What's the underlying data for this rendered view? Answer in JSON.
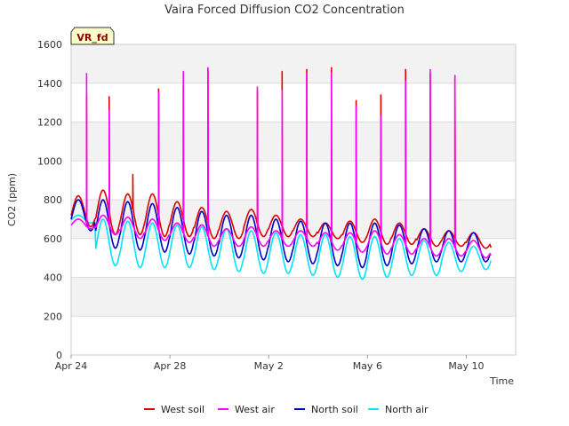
{
  "chart_data": {
    "type": "line",
    "title": "Vaira Forced Diffusion CO2 Concentration",
    "badge": "VR_fd",
    "xlabel": "Time",
    "ylabel": "CO2 (ppm)",
    "ylim": [
      0,
      1600
    ],
    "yticks": [
      0,
      200,
      400,
      600,
      800,
      1000,
      1200,
      1400,
      1600
    ],
    "x_start": "2024-04-24",
    "x_end": "2024-05-12",
    "xticks": [
      {
        "date": "2024-04-24",
        "label": "Apr 24"
      },
      {
        "date": "2024-04-28",
        "label": "Apr 28"
      },
      {
        "date": "2024-05-02",
        "label": "May 2"
      },
      {
        "date": "2024-05-06",
        "label": "May 6"
      },
      {
        "date": "2024-05-10",
        "label": "May 10"
      }
    ],
    "grid": true,
    "legend_placement": "bottom",
    "data_start": "2024-04-24",
    "data_end": "2024-05-11",
    "series": [
      {
        "name": "West soil",
        "color": "#e00000",
        "daily_max": [
          820,
          850,
          830,
          830,
          790,
          760,
          740,
          750,
          720,
          700,
          680,
          690,
          700,
          680,
          650,
          640,
          630,
          610
        ],
        "daily_min": [
          660,
          620,
          620,
          610,
          610,
          600,
          600,
          610,
          610,
          610,
          600,
          580,
          570,
          570,
          560,
          560,
          550,
          520
        ],
        "spikes": [
          {
            "date": "2024-04-24 15:00",
            "value": 1340
          },
          {
            "date": "2024-04-25 13:00",
            "value": 1330
          },
          {
            "date": "2024-04-26 12:00",
            "value": 930
          },
          {
            "date": "2024-04-27 13:00",
            "value": 1370
          },
          {
            "date": "2024-04-28 13:00",
            "value": 1380
          },
          {
            "date": "2024-04-29 13:00",
            "value": 1470
          },
          {
            "date": "2024-05-01 13:00",
            "value": 1360
          },
          {
            "date": "2024-05-02 13:00",
            "value": 1460
          },
          {
            "date": "2024-05-03 13:00",
            "value": 1470
          },
          {
            "date": "2024-05-04 13:00",
            "value": 1480
          },
          {
            "date": "2024-05-05 13:00",
            "value": 1310
          },
          {
            "date": "2024-05-06 13:00",
            "value": 1340
          },
          {
            "date": "2024-05-07 13:00",
            "value": 1470
          },
          {
            "date": "2024-05-08 13:00",
            "value": 1450
          },
          {
            "date": "2024-05-09 13:00",
            "value": 1420
          }
        ]
      },
      {
        "name": "West air",
        "color": "#ff00ff",
        "daily_max": [
          700,
          720,
          710,
          700,
          680,
          670,
          650,
          660,
          640,
          640,
          630,
          630,
          640,
          620,
          600,
          600,
          590,
          570
        ],
        "daily_min": [
          650,
          620,
          600,
          590,
          580,
          560,
          560,
          560,
          560,
          560,
          540,
          530,
          520,
          520,
          510,
          510,
          500,
          480
        ],
        "spikes": [
          {
            "date": "2024-04-24 15:00",
            "value": 1450
          },
          {
            "date": "2024-04-25 13:00",
            "value": 1260
          },
          {
            "date": "2024-04-27 13:00",
            "value": 1350
          },
          {
            "date": "2024-04-28 13:00",
            "value": 1460
          },
          {
            "date": "2024-04-29 13:00",
            "value": 1480
          },
          {
            "date": "2024-05-01 13:00",
            "value": 1380
          },
          {
            "date": "2024-05-02 13:00",
            "value": 1360
          },
          {
            "date": "2024-05-03 13:00",
            "value": 1450
          },
          {
            "date": "2024-05-04 13:00",
            "value": 1450
          },
          {
            "date": "2024-05-05 13:00",
            "value": 1280
          },
          {
            "date": "2024-05-06 13:00",
            "value": 1230
          },
          {
            "date": "2024-05-07 13:00",
            "value": 1410
          },
          {
            "date": "2024-05-08 13:00",
            "value": 1470
          },
          {
            "date": "2024-05-09 13:00",
            "value": 1440
          }
        ]
      },
      {
        "name": "North soil",
        "color": "#0000c8",
        "daily_max": [
          800,
          800,
          790,
          780,
          760,
          740,
          720,
          720,
          700,
          690,
          680,
          680,
          680,
          670,
          650,
          640,
          630,
          610
        ],
        "daily_min": [
          640,
          550,
          540,
          530,
          520,
          510,
          500,
          490,
          480,
          470,
          460,
          450,
          460,
          470,
          480,
          480,
          480,
          470
        ]
      },
      {
        "name": "North air",
        "color": "#00e5ff",
        "daily_max": [
          720,
          700,
          690,
          680,
          670,
          660,
          650,
          640,
          630,
          620,
          620,
          610,
          610,
          600,
          590,
          580,
          560,
          550
        ],
        "daily_min": [
          680,
          460,
          450,
          450,
          450,
          440,
          430,
          420,
          420,
          410,
          400,
          390,
          400,
          410,
          410,
          430,
          440,
          450
        ]
      }
    ]
  }
}
